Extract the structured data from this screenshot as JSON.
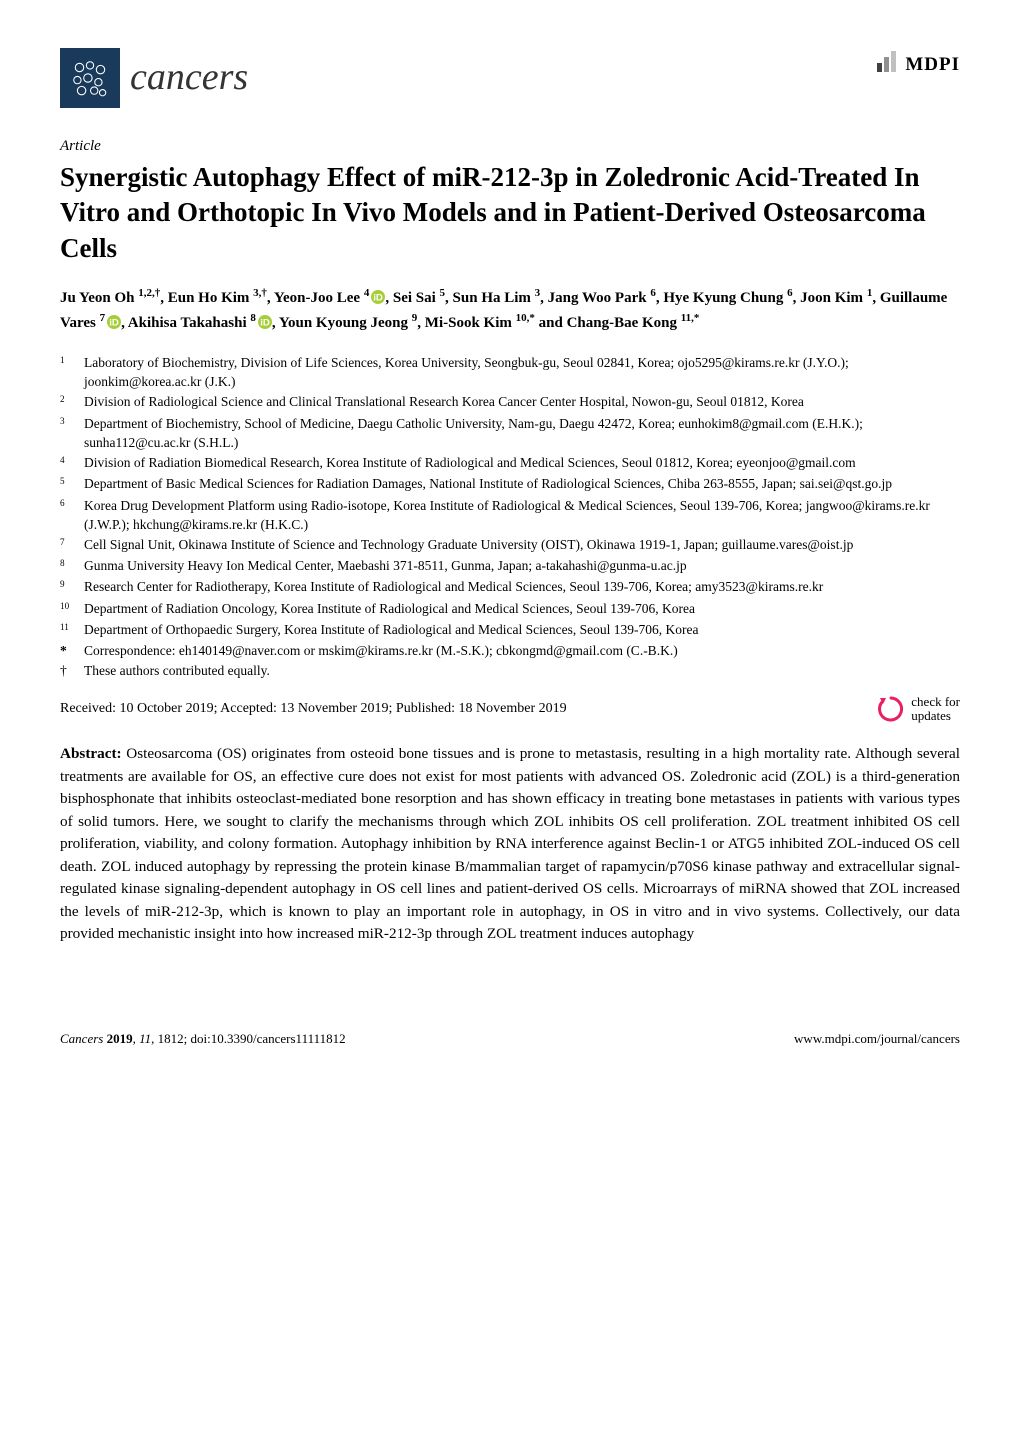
{
  "journal": {
    "name": "cancers",
    "publisher": "MDPI"
  },
  "article": {
    "type": "Article",
    "title": "Synergistic Autophagy Effect of miR-212-3p in Zoledronic Acid-Treated In Vitro and Orthotopic In Vivo Models and in Patient-Derived Osteosarcoma Cells"
  },
  "authors_line": "Ju Yeon Oh 1,2,†, Eun Ho Kim 3,†, Yeon-Joo Lee 4 [ORCID], Sei Sai 5, Sun Ha Lim 3, Jang Woo Park 6, Hye Kyung Chung 6, Joon Kim 1, Guillaume Vares 7 [ORCID], Akihisa Takahashi 8 [ORCID], Youn Kyoung Jeong 9, Mi-Sook Kim 10,* and Chang-Bae Kong 11,*",
  "authors": [
    {
      "name": "Ju Yeon Oh",
      "sup": "1,2,†"
    },
    {
      "name": "Eun Ho Kim",
      "sup": "3,†"
    },
    {
      "name": "Yeon-Joo Lee",
      "sup": "4",
      "orcid": true
    },
    {
      "name": "Sei Sai",
      "sup": "5"
    },
    {
      "name": "Sun Ha Lim",
      "sup": "3"
    },
    {
      "name": "Jang Woo Park",
      "sup": "6"
    },
    {
      "name": "Hye Kyung Chung",
      "sup": "6"
    },
    {
      "name": "Joon Kim",
      "sup": "1"
    },
    {
      "name": "Guillaume Vares",
      "sup": "7",
      "orcid": true
    },
    {
      "name": "Akihisa Takahashi",
      "sup": "8",
      "orcid": true
    },
    {
      "name": "Youn Kyoung Jeong",
      "sup": "9"
    },
    {
      "name": "Mi-Sook Kim",
      "sup": "10,*"
    },
    {
      "name": "Chang-Bae Kong",
      "sup": "11,*"
    }
  ],
  "affiliations": [
    {
      "n": "1",
      "text": "Laboratory of Biochemistry, Division of Life Sciences, Korea University, Seongbuk-gu, Seoul 02841, Korea; ojo5295@kirams.re.kr (J.Y.O.); joonkim@korea.ac.kr (J.K.)"
    },
    {
      "n": "2",
      "text": "Division of Radiological Science and Clinical Translational Research Korea Cancer Center Hospital, Nowon-gu, Seoul 01812, Korea"
    },
    {
      "n": "3",
      "text": "Department of Biochemistry, School of Medicine, Daegu Catholic University, Nam-gu, Daegu 42472, Korea; eunhokim8@gmail.com (E.H.K.); sunha112@cu.ac.kr (S.H.L.)"
    },
    {
      "n": "4",
      "text": "Division of Radiation Biomedical Research, Korea Institute of Radiological and Medical Sciences, Seoul 01812, Korea; eyeonjoo@gmail.com"
    },
    {
      "n": "5",
      "text": "Department of Basic Medical Sciences for Radiation Damages, National Institute of Radiological Sciences, Chiba 263-8555, Japan; sai.sei@qst.go.jp"
    },
    {
      "n": "6",
      "text": "Korea Drug Development Platform using Radio-isotope, Korea Institute of Radiological & Medical Sciences, Seoul 139-706, Korea; jangwoo@kirams.re.kr (J.W.P.); hkchung@kirams.re.kr (H.K.C.)"
    },
    {
      "n": "7",
      "text": "Cell Signal Unit, Okinawa Institute of Science and Technology Graduate University (OIST), Okinawa 1919-1, Japan; guillaume.vares@oist.jp"
    },
    {
      "n": "8",
      "text": "Gunma University Heavy Ion Medical Center, Maebashi 371-8511, Gunma, Japan; a-takahashi@gunma-u.ac.jp"
    },
    {
      "n": "9",
      "text": "Research Center for Radiotherapy, Korea Institute of Radiological and Medical Sciences, Seoul 139-706, Korea; amy3523@kirams.re.kr"
    },
    {
      "n": "10",
      "text": "Department of Radiation Oncology, Korea Institute of Radiological and Medical Sciences, Seoul 139-706, Korea"
    },
    {
      "n": "11",
      "text": "Department of Orthopaedic Surgery, Korea Institute of Radiological and Medical Sciences, Seoul 139-706, Korea"
    }
  ],
  "correspondence": {
    "sym": "*",
    "text": "Correspondence: eh140149@naver.com or mskim@kirams.re.kr (M.-S.K.); cbkongmd@gmail.com (C.-B.K.)"
  },
  "equal_contrib": {
    "sym": "†",
    "text": "These authors contributed equally."
  },
  "dates": "Received: 10 October 2019; Accepted: 13 November 2019; Published: 18 November 2019",
  "check_updates_label": "check for\nupdates",
  "abstract": {
    "label": "Abstract:",
    "text": " Osteosarcoma (OS) originates from osteoid bone tissues and is prone to metastasis, resulting in a high mortality rate. Although several treatments are available for OS, an effective cure does not exist for most patients with advanced OS. Zoledronic acid (ZOL) is a third-generation bisphosphonate that inhibits osteoclast-mediated bone resorption and has shown efficacy in treating bone metastases in patients with various types of solid tumors. Here, we sought to clarify the mechanisms through which ZOL inhibits OS cell proliferation. ZOL treatment inhibited OS cell proliferation, viability, and colony formation. Autophagy inhibition by RNA interference against Beclin-1 or ATG5 inhibited ZOL-induced OS cell death. ZOL induced autophagy by repressing the protein kinase B/mammalian target of rapamycin/p70S6 kinase pathway and extracellular signal-regulated kinase signaling-dependent autophagy in OS cell lines and patient-derived OS cells. Microarrays of miRNA showed that ZOL increased the levels of miR-212-3p, which is known to play an important role in autophagy, in OS in vitro and in vivo systems. Collectively, our data provided mechanistic insight into how increased miR-212-3p through ZOL treatment induces autophagy"
  },
  "footer": {
    "left": "Cancers 2019, 11, 1812; doi:10.3390/cancers11111812",
    "right": "www.mdpi.com/journal/cancers"
  },
  "colors": {
    "logo_bg": "#1a3a5c",
    "logo_fg": "#ffffff",
    "orcid_green": "#a6ce39",
    "check_pink": "#e91e63",
    "text": "#000000",
    "bg": "#ffffff"
  },
  "typography": {
    "title_fontsize": 27,
    "journal_fontsize": 38,
    "body_fontsize": 15.2,
    "affil_fontsize": 13.5,
    "footer_fontsize": 13
  }
}
